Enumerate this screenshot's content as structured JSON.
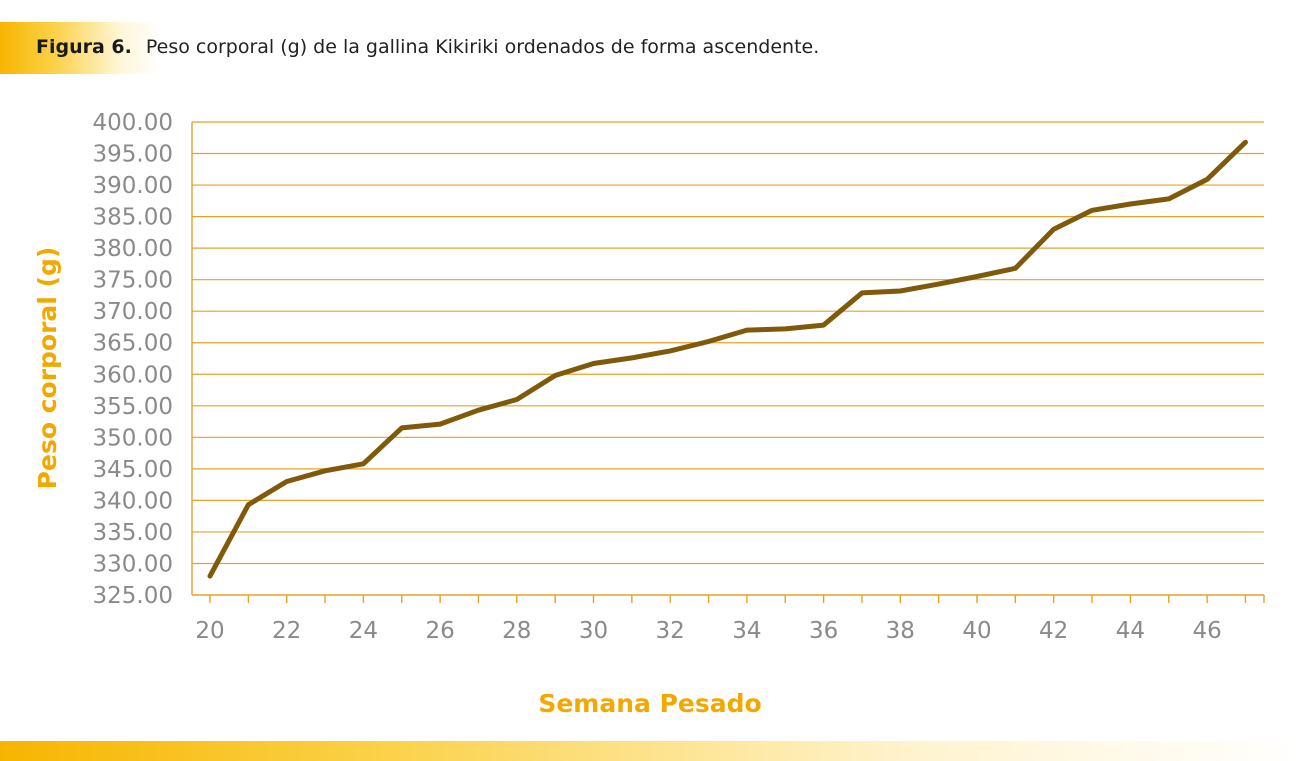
{
  "caption": {
    "label": "Figura 6.",
    "text": "Peso corporal (g) de la gallina Kikiriki ordenados de forma ascendente."
  },
  "colors": {
    "line": "#7f5a0b",
    "grid": "#e3a32a",
    "axis_title": "#f3a800",
    "tick_label": "#8a8a8a"
  },
  "chart_data": {
    "type": "line",
    "xlabel": "Semana Pesado",
    "ylabel": "Peso corporal (g)",
    "ylim": [
      325,
      400
    ],
    "xlim": [
      20,
      47
    ],
    "y_ticks": [
      "325.00",
      "330.00",
      "335.00",
      "340.00",
      "345.00",
      "350.00",
      "355.00",
      "360.00",
      "365.00",
      "370.00",
      "375.00",
      "380.00",
      "385.00",
      "390.00",
      "395.00",
      "400.00"
    ],
    "x_tick_labels": [
      "20",
      "22",
      "24",
      "26",
      "28",
      "30",
      "32",
      "34",
      "36",
      "38",
      "40",
      "42",
      "44",
      "46"
    ],
    "grid": true,
    "legend": "none",
    "series": [
      {
        "x": [
          20,
          21,
          22,
          23,
          24,
          25,
          26,
          27,
          28,
          29,
          30,
          31,
          32,
          33,
          34,
          35,
          36,
          37,
          38,
          39,
          40,
          41,
          42,
          43,
          44,
          45,
          46,
          47
        ],
        "values": [
          328.0,
          339.3,
          343.0,
          344.7,
          345.8,
          351.5,
          352.1,
          354.3,
          356.0,
          359.8,
          361.7,
          362.6,
          363.7,
          365.2,
          367.0,
          367.2,
          367.8,
          372.9,
          373.2,
          374.3,
          375.5,
          376.8,
          383.0,
          386.0,
          387.0,
          387.8,
          390.9,
          396.8
        ]
      }
    ]
  }
}
